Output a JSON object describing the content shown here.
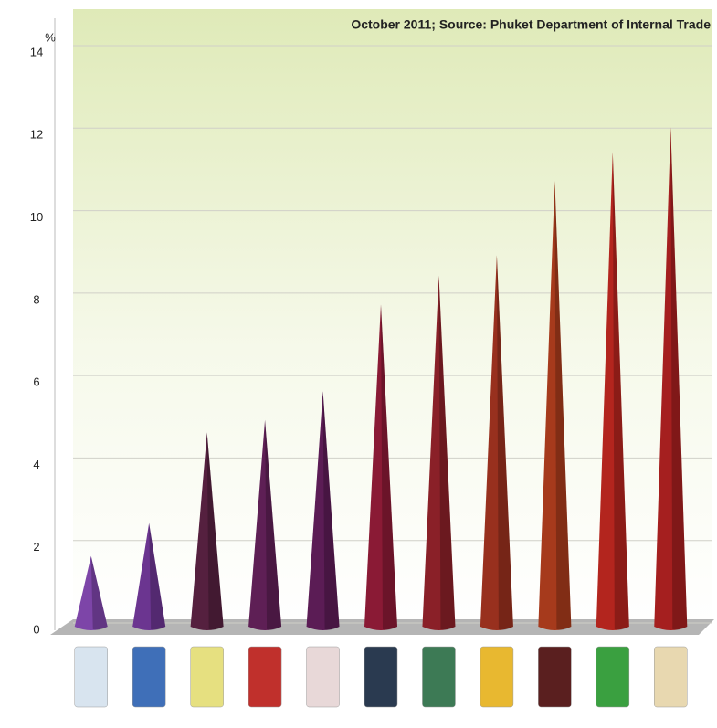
{
  "chart_data": {
    "type": "cone",
    "title": "October 2011; Source: Phuket Department of Internal Trade",
    "y_label": "%",
    "categories": [
      null,
      null,
      null,
      null,
      null,
      null,
      null,
      null,
      null,
      null,
      null
    ],
    "values": [
      1.8,
      2.6,
      4.8,
      5.1,
      5.8,
      7.9,
      8.6,
      9.1,
      10.9,
      11.6,
      12.2
    ],
    "colors": [
      "#7d45a8",
      "#6b3590",
      "#55203f",
      "#5e1f55",
      "#5b1c55",
      "#8a1a35",
      "#8a2028",
      "#98301e",
      "#a63a1c",
      "#b3251e",
      "#a51f1f"
    ],
    "ylim": [
      0,
      14
    ],
    "yticks": [
      0,
      2,
      4,
      6,
      8,
      10,
      12,
      14
    ],
    "grid": true
  }
}
